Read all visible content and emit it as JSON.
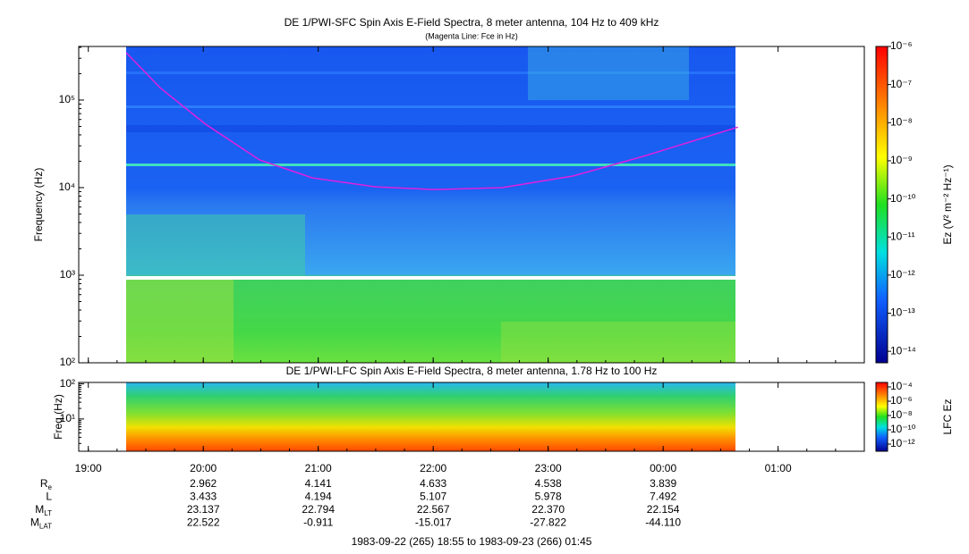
{
  "chart_data": [
    {
      "type": "spectrogram",
      "title": "DE 1/PWI-SFC  Spin Axis E-Field Spectra, 8 meter antenna, 104 Hz to 409 kHz",
      "subtitle": "(Magenta Line: Fce in Hz)",
      "y_label": "Frequency (Hz)",
      "log_y": true,
      "ylim": [
        100,
        409000
      ],
      "yticks": [
        {
          "value": 100,
          "label": "10²"
        },
        {
          "value": 1000,
          "label": "10³"
        },
        {
          "value": 10000,
          "label": "10⁴"
        },
        {
          "value": 100000,
          "label": "10⁵"
        }
      ],
      "xlim": [
        18.9167,
        25.75
      ],
      "xticks": [
        19,
        20,
        21,
        22,
        23,
        24,
        25
      ],
      "colorbar": {
        "label": "Ez (V² m⁻² Hz⁻¹)",
        "clim": [
          5e-15,
          1e-06
        ],
        "ticks": [
          {
            "value": 1e-06,
            "label": "10⁻⁶"
          },
          {
            "value": 1e-07,
            "label": "10⁻⁷"
          },
          {
            "value": 1e-08,
            "label": "10⁻⁸"
          },
          {
            "value": 1e-09,
            "label": "10⁻⁹"
          },
          {
            "value": 1e-10,
            "label": "10⁻¹⁰"
          },
          {
            "value": 1e-11,
            "label": "10⁻¹¹"
          },
          {
            "value": 1e-12,
            "label": "10⁻¹²"
          },
          {
            "value": 1e-13,
            "label": "10⁻¹³"
          },
          {
            "value": 1e-14,
            "label": "10⁻¹⁴"
          }
        ]
      },
      "overlay": {
        "color": "#e020e0",
        "x": [
          19.33,
          19.63,
          20.02,
          20.49,
          20.95,
          21.5,
          22.0,
          22.6,
          23.22,
          23.84,
          24.65
        ],
        "values": [
          347000,
          136000,
          53000,
          20700,
          12900,
          10200,
          9500,
          10000,
          13600,
          23000,
          49000
        ]
      }
    },
    {
      "type": "spectrogram",
      "title": "DE 1/PWI-LFC  Spin Axis E-Field Spectra, 8 meter antenna, 1.78 Hz to 100 Hz",
      "y_label": "Freq (Hz)",
      "log_y": true,
      "ylim": [
        1.2,
        110
      ],
      "yticks": [
        {
          "value": 10,
          "label": "10¹"
        },
        {
          "value": 100,
          "label": "10²"
        }
      ],
      "xlim": [
        18.9167,
        25.75
      ],
      "xticks": [
        {
          "value": 19,
          "label": "19:00"
        },
        {
          "value": 20,
          "label": "20:00"
        },
        {
          "value": 21,
          "label": "21:00"
        },
        {
          "value": 22,
          "label": "22:00"
        },
        {
          "value": 23,
          "label": "23:00"
        },
        {
          "value": 24,
          "label": "00:00"
        },
        {
          "value": 25,
          "label": "01:00"
        }
      ],
      "colorbar": {
        "label": "LFC Ez",
        "clim": [
          1e-13,
          0.00042
        ],
        "ticks": [
          {
            "value": 0.0001,
            "label": "10⁻⁴"
          },
          {
            "value": 1e-06,
            "label": "10⁻⁶"
          },
          {
            "value": 1e-08,
            "label": "10⁻⁸"
          },
          {
            "value": 1e-10,
            "label": "10⁻¹⁰"
          },
          {
            "value": 1e-12,
            "label": "10⁻¹²"
          }
        ]
      }
    }
  ],
  "ephemeris": {
    "x": [
      20,
      21,
      22,
      23,
      24
    ],
    "rows": [
      {
        "label": "R",
        "subscript": "e",
        "values": [
          "2.962",
          "4.141",
          "4.633",
          "4.538",
          "3.839"
        ]
      },
      {
        "label": "L",
        "values": [
          "3.433",
          "4.194",
          "5.107",
          "5.978",
          "7.492"
        ]
      },
      {
        "label": "M",
        "subscript": "LT",
        "values": [
          "23.137",
          "22.794",
          "22.567",
          "22.370",
          "22.154"
        ]
      },
      {
        "label": "M",
        "subscript": "LAT",
        "values": [
          "22.522",
          "-0.911",
          "-15.017",
          "-27.822",
          "-44.110"
        ]
      }
    ]
  },
  "footer": "1983-09-22 (265) 18:55 to 1983-09-23 (266) 01:45"
}
